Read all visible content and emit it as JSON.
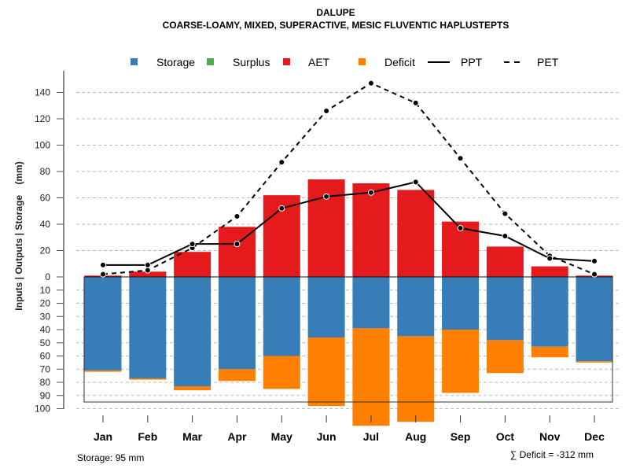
{
  "chart_data": {
    "type": "bar",
    "title": "DALUPE",
    "subtitle": "COARSE-LOAMY, MIXED, SUPERACTIVE, MESIC FLUVENTIC HAPLUSTEPTS",
    "ylabel": "Inputs | Outputs | Storage    (mm)",
    "xlabel": "",
    "categories": [
      "Jan",
      "Feb",
      "Mar",
      "Apr",
      "May",
      "Jun",
      "Jul",
      "Aug",
      "Sep",
      "Oct",
      "Nov",
      "Dec"
    ],
    "ylim_upper": [
      0,
      140
    ],
    "ylim_lower": [
      0,
      100
    ],
    "yticks_upper": [
      "0",
      "20",
      "40",
      "60",
      "80",
      "100",
      "120",
      "140"
    ],
    "yticks_lower": [
      "10",
      "20",
      "30",
      "40",
      "50",
      "60",
      "70",
      "80",
      "90",
      "100"
    ],
    "grid": true,
    "legend_position": "top",
    "legend": [
      {
        "label": "Storage",
        "kind": "square",
        "color": "#377EB8"
      },
      {
        "label": "Surplus",
        "kind": "square",
        "color": "#4DAF4A"
      },
      {
        "label": "AET",
        "kind": "square",
        "color": "#E41A1C"
      },
      {
        "label": "Deficit",
        "kind": "square",
        "color": "#FF7F00"
      },
      {
        "label": "PPT",
        "kind": "line"
      },
      {
        "label": "PET",
        "kind": "dash"
      }
    ],
    "series": [
      {
        "name": "AET",
        "color": "#E41A1C",
        "values": [
          1,
          4,
          19,
          38,
          62,
          74,
          71,
          66,
          42,
          23,
          8,
          1
        ]
      },
      {
        "name": "Storage",
        "color": "#377EB8",
        "values": [
          71,
          77,
          83,
          70,
          60,
          46,
          39,
          45,
          40,
          48,
          53,
          64
        ]
      },
      {
        "name": "Deficit",
        "color": "#FF7F00",
        "values": [
          1,
          1,
          3,
          9,
          25,
          52,
          74,
          65,
          48,
          25,
          8,
          1
        ]
      },
      {
        "name": "Surplus",
        "color": "#4DAF4A",
        "values": [
          0,
          0,
          0,
          0,
          0,
          0,
          0,
          0,
          0,
          0,
          0,
          0
        ]
      },
      {
        "name": "PPT",
        "values": [
          9,
          9,
          25,
          25,
          52,
          61,
          64,
          72,
          37,
          31,
          14,
          12
        ]
      },
      {
        "name": "PET",
        "values": [
          2,
          5,
          22,
          46,
          87,
          126,
          147,
          132,
          90,
          48,
          16,
          2
        ]
      }
    ],
    "storage_capacity": 95,
    "annotations": {
      "storage": "Storage: 95 mm",
      "deficit": "∑ Deficit = -312 mm"
    }
  }
}
